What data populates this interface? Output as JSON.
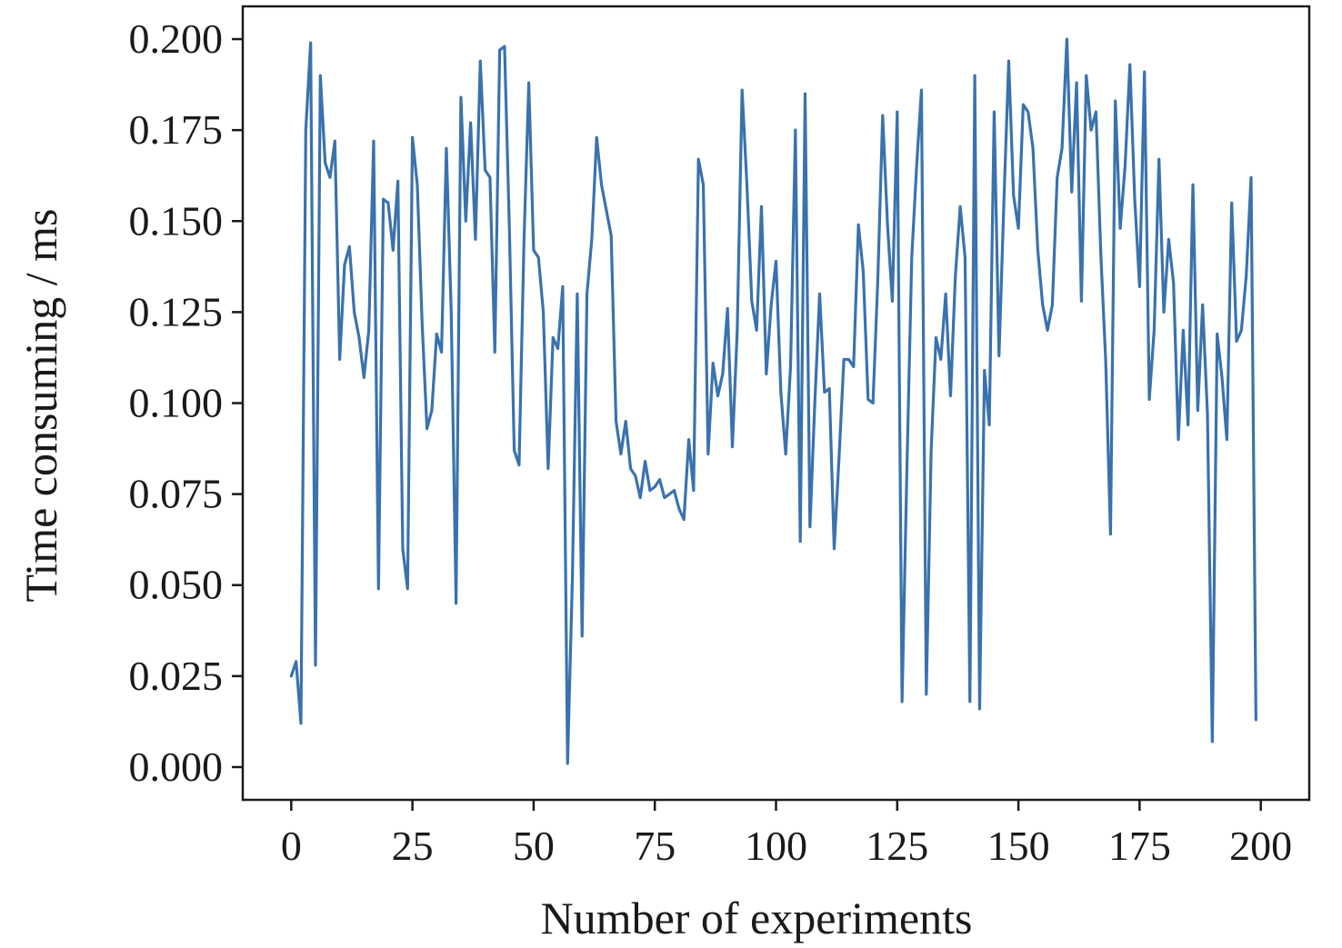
{
  "chart_data": {
    "type": "line",
    "title": "",
    "xlabel": "Number of experiments",
    "ylabel": "Time consuming / ms",
    "xlim": [
      -10,
      210
    ],
    "ylim": [
      -0.009,
      0.209
    ],
    "xticks": [
      0,
      25,
      50,
      75,
      100,
      125,
      150,
      175,
      200
    ],
    "yticks": [
      0.0,
      0.025,
      0.05,
      0.075,
      0.1,
      0.125,
      0.15,
      0.175,
      0.2
    ],
    "xtick_labels": [
      "0",
      "25",
      "50",
      "75",
      "100",
      "125",
      "150",
      "175",
      "200"
    ],
    "ytick_labels": [
      "0.000",
      "0.025",
      "0.050",
      "0.075",
      "0.100",
      "0.125",
      "0.150",
      "0.175",
      "0.200"
    ],
    "grid": false,
    "legend": "none",
    "series": [
      {
        "color": "#3a72ad",
        "x": [
          0,
          1,
          2,
          3,
          4,
          5,
          6,
          7,
          8,
          9,
          10,
          11,
          12,
          13,
          14,
          15,
          16,
          17,
          18,
          19,
          20,
          21,
          22,
          23,
          24,
          25,
          26,
          27,
          28,
          29,
          30,
          31,
          32,
          33,
          34,
          35,
          36,
          37,
          38,
          39,
          40,
          41,
          42,
          43,
          44,
          45,
          46,
          47,
          48,
          49,
          50,
          51,
          52,
          53,
          54,
          55,
          56,
          57,
          58,
          59,
          60,
          61,
          62,
          63,
          64,
          65,
          66,
          67,
          68,
          69,
          70,
          71,
          72,
          73,
          74,
          75,
          76,
          77,
          78,
          79,
          80,
          81,
          82,
          83,
          84,
          85,
          86,
          87,
          88,
          89,
          90,
          91,
          92,
          93,
          94,
          95,
          96,
          97,
          98,
          99,
          100,
          101,
          102,
          103,
          104,
          105,
          106,
          107,
          108,
          109,
          110,
          111,
          112,
          113,
          114,
          115,
          116,
          117,
          118,
          119,
          120,
          121,
          122,
          123,
          124,
          125,
          126,
          127,
          128,
          129,
          130,
          131,
          132,
          133,
          134,
          135,
          136,
          137,
          138,
          139,
          140,
          141,
          142,
          143,
          144,
          145,
          146,
          147,
          148,
          149,
          150,
          151,
          152,
          153,
          154,
          155,
          156,
          157,
          158,
          159,
          160,
          161,
          162,
          163,
          164,
          165,
          166,
          167,
          168,
          169,
          170,
          171,
          172,
          173,
          174,
          175,
          176,
          177,
          178,
          179,
          180,
          181,
          182,
          183,
          184,
          185,
          186,
          187,
          188,
          189,
          190,
          191,
          192,
          193,
          194,
          195,
          196,
          197,
          198,
          199
        ],
        "y": [
          0.025,
          0.029,
          0.012,
          0.175,
          0.199,
          0.028,
          0.19,
          0.166,
          0.162,
          0.172,
          0.112,
          0.138,
          0.143,
          0.125,
          0.118,
          0.107,
          0.12,
          0.172,
          0.049,
          0.156,
          0.155,
          0.142,
          0.161,
          0.06,
          0.049,
          0.173,
          0.16,
          0.122,
          0.093,
          0.098,
          0.119,
          0.114,
          0.17,
          0.125,
          0.045,
          0.184,
          0.15,
          0.177,
          0.145,
          0.194,
          0.164,
          0.162,
          0.114,
          0.197,
          0.198,
          0.148,
          0.087,
          0.083,
          0.144,
          0.188,
          0.142,
          0.14,
          0.125,
          0.082,
          0.118,
          0.115,
          0.132,
          0.001,
          0.052,
          0.13,
          0.036,
          0.13,
          0.145,
          0.173,
          0.16,
          0.153,
          0.146,
          0.095,
          0.086,
          0.095,
          0.082,
          0.08,
          0.074,
          0.084,
          0.076,
          0.077,
          0.079,
          0.074,
          0.075,
          0.076,
          0.071,
          0.068,
          0.09,
          0.076,
          0.167,
          0.16,
          0.086,
          0.111,
          0.102,
          0.108,
          0.126,
          0.088,
          0.12,
          0.186,
          0.16,
          0.128,
          0.12,
          0.154,
          0.108,
          0.127,
          0.139,
          0.103,
          0.086,
          0.11,
          0.175,
          0.062,
          0.185,
          0.066,
          0.1,
          0.13,
          0.103,
          0.104,
          0.06,
          0.085,
          0.112,
          0.112,
          0.11,
          0.149,
          0.136,
          0.101,
          0.1,
          0.134,
          0.179,
          0.149,
          0.128,
          0.18,
          0.018,
          0.082,
          0.14,
          0.165,
          0.186,
          0.02,
          0.087,
          0.118,
          0.112,
          0.13,
          0.102,
          0.135,
          0.154,
          0.14,
          0.018,
          0.19,
          0.016,
          0.109,
          0.094,
          0.18,
          0.113,
          0.155,
          0.194,
          0.157,
          0.148,
          0.182,
          0.18,
          0.17,
          0.142,
          0.127,
          0.12,
          0.127,
          0.162,
          0.17,
          0.2,
          0.158,
          0.188,
          0.128,
          0.19,
          0.175,
          0.18,
          0.141,
          0.112,
          0.064,
          0.183,
          0.148,
          0.165,
          0.193,
          0.156,
          0.132,
          0.191,
          0.101,
          0.12,
          0.167,
          0.125,
          0.145,
          0.133,
          0.09,
          0.12,
          0.094,
          0.16,
          0.098,
          0.127,
          0.097,
          0.007,
          0.119,
          0.107,
          0.09,
          0.155,
          0.117,
          0.12,
          0.135,
          0.162,
          0.013
        ]
      }
    ]
  }
}
